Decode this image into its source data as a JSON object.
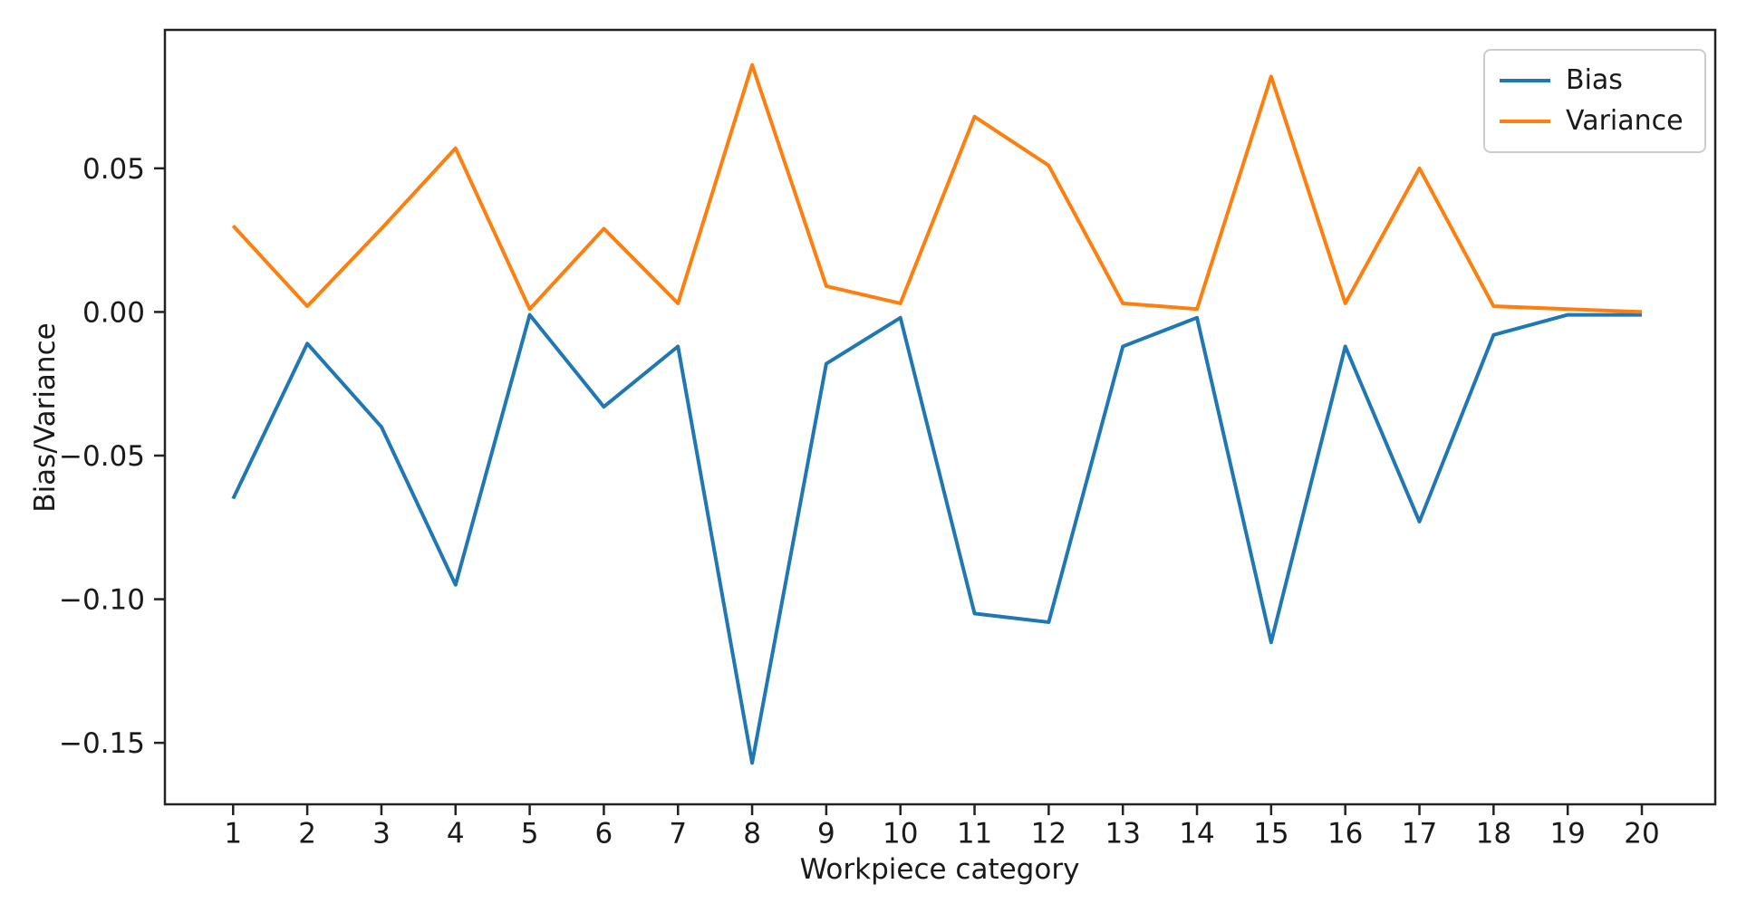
{
  "chart_data": {
    "type": "line",
    "title": "",
    "xlabel": "Workpiece category",
    "ylabel": "Bias/Variance",
    "categories": [
      1,
      2,
      3,
      4,
      5,
      6,
      7,
      8,
      9,
      10,
      11,
      12,
      13,
      14,
      15,
      16,
      17,
      18,
      19,
      20
    ],
    "series": [
      {
        "name": "Bias",
        "color": "#1f77b4",
        "values": [
          -0.065,
          -0.011,
          -0.04,
          -0.095,
          -0.001,
          -0.033,
          -0.012,
          -0.157,
          -0.018,
          -0.002,
          -0.105,
          -0.108,
          -0.012,
          -0.002,
          -0.115,
          -0.012,
          -0.073,
          -0.008,
          -0.001,
          -0.001
        ]
      },
      {
        "name": "Variance",
        "color": "#ff7f0e",
        "values": [
          0.03,
          0.002,
          0.029,
          0.057,
          0.001,
          0.029,
          0.003,
          0.086,
          0.009,
          0.003,
          0.068,
          0.051,
          0.003,
          0.001,
          0.082,
          0.003,
          0.05,
          0.002,
          0.001,
          0.0
        ]
      }
    ],
    "x_ticks": {
      "labels": [
        "1",
        "2",
        "3",
        "4",
        "5",
        "6",
        "7",
        "8",
        "9",
        "10",
        "11",
        "12",
        "13",
        "14",
        "15",
        "16",
        "17",
        "18",
        "19",
        "20"
      ]
    },
    "y_ticks": {
      "values": [
        0.05,
        0.0,
        -0.05,
        -0.1,
        -0.15
      ],
      "labels": [
        "0.05",
        "0.00",
        "−0.05",
        "−0.10",
        "−0.15"
      ]
    },
    "xlim": [
      0.08,
      20.99
    ],
    "ylim": [
      -0.1714,
      0.0982
    ],
    "grid": false,
    "legend": {
      "position": "upper right",
      "items": [
        "Bias",
        "Variance"
      ]
    }
  },
  "colors": {
    "background": "#ffffff",
    "spine": "#222222",
    "tick": "#222222",
    "tick_label": "#1a1a1a",
    "legend_border": "#cccccc"
  }
}
